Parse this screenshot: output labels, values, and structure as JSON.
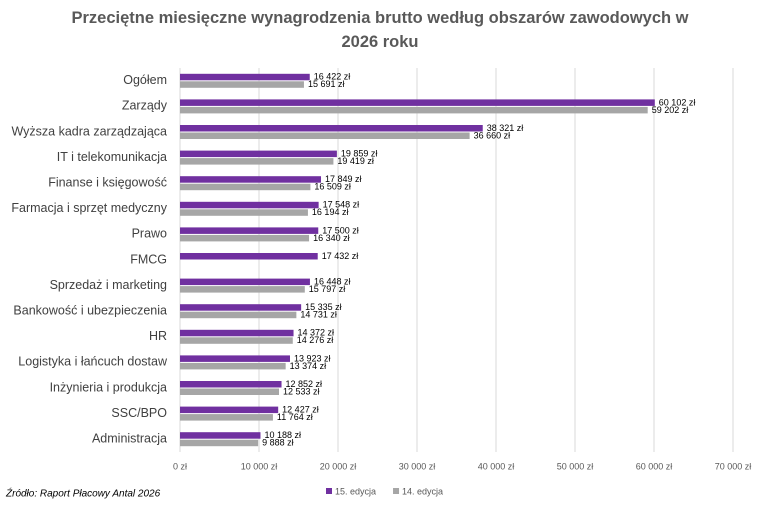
{
  "chart_data": {
    "type": "hbar",
    "title": "Przeciętne miesięczne wynagrodzenia brutto według obszarów zawodowych w 2026 roku",
    "source": "Źródło: Raport Płacowy Antal 2026",
    "categories": [
      "Ogółem",
      "Zarządy",
      "Wyższa kadra zarządzająca",
      "IT i telekomunikacja",
      "Finanse i księgowość",
      "Farmacja i sprzęt medyczny",
      "Prawo",
      "FMCG",
      "Sprzedaż i marketing",
      "Bankowość i ubezpieczenia",
      "HR",
      "Logistyka i łańcuch dostaw",
      "Inżynieria i produkcja",
      "SSC/BPO",
      "Administracja"
    ],
    "series": [
      {
        "name": "15. edycja",
        "color": "#7030a0",
        "values": [
          16422,
          60102,
          38321,
          19859,
          17849,
          17548,
          17500,
          17432,
          16448,
          15335,
          14372,
          13923,
          12852,
          12427,
          10188
        ],
        "value_labels": [
          "16 422 zł",
          "60 102 zł",
          "38 321 zł",
          "19 859 zł",
          "17 849 zł",
          "17 548 zł",
          "17 500 zł",
          "17 432 zł",
          "16 448 zł",
          "15 335 zł",
          "14 372 zł",
          "13 923 zł",
          "12 852 zł",
          "12 427 zł",
          "10 188 zł"
        ]
      },
      {
        "name": "14. edycja",
        "color": "#a6a6a6",
        "values": [
          15691,
          59202,
          36660,
          19419,
          16509,
          16194,
          16340,
          null,
          15797,
          14731,
          14276,
          13374,
          12533,
          11764,
          9888
        ],
        "value_labels": [
          "15 691 zł",
          "59 202 zł",
          "36 660 zł",
          "19 419 zł",
          "16 509 zł",
          "16 194 zł",
          "16 340 zł",
          null,
          "15 797 zł",
          "14 731 zł",
          "14 276 zł",
          "13 374 zł",
          "12 533 zł",
          "11 764 zł",
          "9 888 zł"
        ]
      }
    ],
    "xlim": [
      0,
      70000
    ],
    "xticks": [
      {
        "value": 0,
        "label": "0 zł"
      },
      {
        "value": 10000,
        "label": "10 000 zł"
      },
      {
        "value": 20000,
        "label": "20 000 zł"
      },
      {
        "value": 30000,
        "label": "30 000 zł"
      },
      {
        "value": 40000,
        "label": "40 000 zł"
      },
      {
        "value": 50000,
        "label": "50 000 zł"
      },
      {
        "value": 60000,
        "label": "60 000 zł"
      },
      {
        "value": 70000,
        "label": "70 000 zł"
      }
    ],
    "grid": true
  }
}
